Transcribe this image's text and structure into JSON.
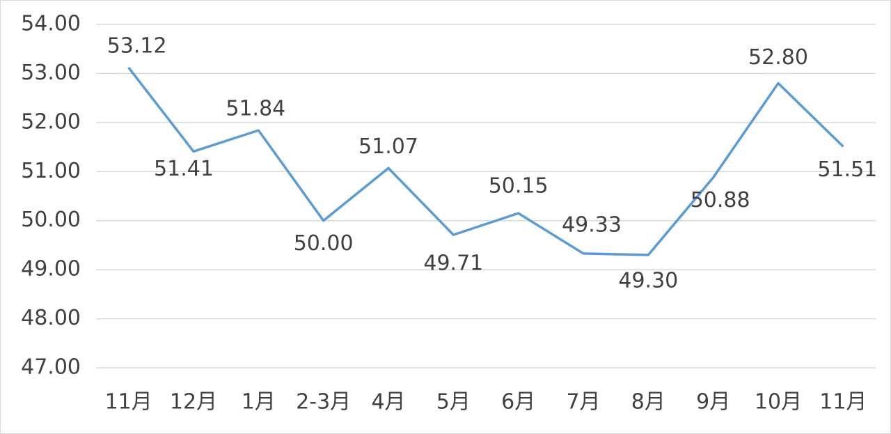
{
  "chart_data": {
    "type": "line",
    "categories": [
      "11月",
      "12月",
      "1月",
      "2-3月",
      "4月",
      "5月",
      "6月",
      "7月",
      "8月",
      "9月",
      "10月",
      "11月"
    ],
    "series": [
      {
        "color": "#5b9bd5",
        "values": [
          53.12,
          51.41,
          51.84,
          50.0,
          51.07,
          49.71,
          50.15,
          49.33,
          49.3,
          50.88,
          52.8,
          51.51
        ],
        "value_labels": [
          "53.12",
          "51.41",
          "51.84",
          "50.00",
          "51.07",
          "49.71",
          "50.15",
          "49.33",
          "49.30",
          "50.88",
          "52.80",
          "51.51"
        ]
      }
    ],
    "ylim": [
      47,
      54
    ],
    "yticks": [
      {
        "value": 47,
        "label": "47.00"
      },
      {
        "value": 48,
        "label": "48.00"
      },
      {
        "value": 49,
        "label": "49.00"
      },
      {
        "value": 50,
        "label": "50.00"
      },
      {
        "value": 51,
        "label": "51.00"
      },
      {
        "value": 52,
        "label": "52.00"
      },
      {
        "value": 53,
        "label": "53.00"
      },
      {
        "value": 54,
        "label": "54.00"
      }
    ],
    "grid": true
  }
}
